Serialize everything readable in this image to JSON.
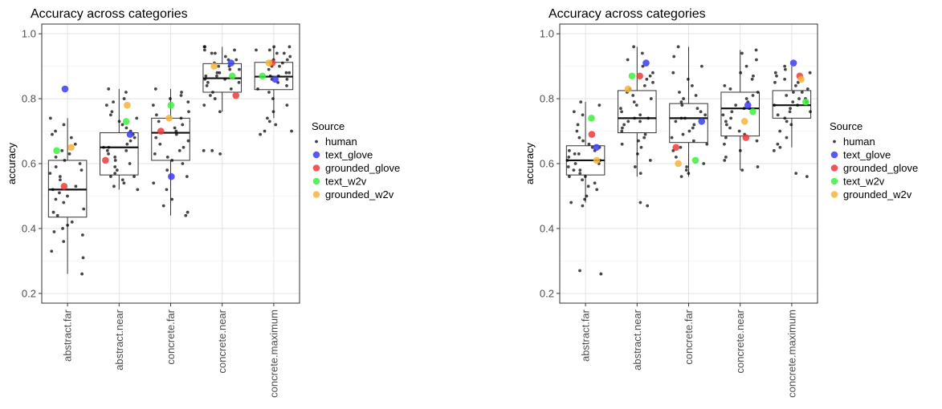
{
  "chart_data": [
    {
      "type": "box",
      "title": "Accuracy across categories",
      "ylabel": "accuracy",
      "xlabel": "",
      "ylim": [
        0.17,
        1.03
      ],
      "yticks": [
        0.2,
        0.4,
        0.6,
        0.8,
        1.0
      ],
      "ytick_labels": [
        "0.2",
        "0.4",
        "0.6",
        "0.8",
        "1.0"
      ],
      "grid": true,
      "legend_position": "right",
      "legend_title": "Source",
      "categories": [
        "abstract.far",
        "abstract.near",
        "concrete.far",
        "concrete.near",
        "concrete.maximum"
      ],
      "boxes": [
        {
          "category": "abstract.far",
          "q1": 0.435,
          "median": 0.52,
          "q3": 0.61,
          "whisker_low": 0.26,
          "whisker_high": 0.74
        },
        {
          "category": "abstract.near",
          "q1": 0.565,
          "median": 0.65,
          "q3": 0.695,
          "whisker_low": 0.52,
          "whisker_high": 0.83
        },
        {
          "category": "concrete.far",
          "q1": 0.61,
          "median": 0.695,
          "q3": 0.74,
          "whisker_low": 0.44,
          "whisker_high": 0.83
        },
        {
          "category": "concrete.near",
          "q1": 0.82,
          "median": 0.863,
          "q3": 0.908,
          "whisker_low": 0.76,
          "whisker_high": 0.96
        },
        {
          "category": "concrete.maximum",
          "q1": 0.828,
          "median": 0.868,
          "q3": 0.912,
          "whisker_low": 0.74,
          "whisker_high": 0.96
        }
      ],
      "human_points": [
        [
          0.26,
          0.31,
          0.33,
          0.36,
          0.38,
          0.39,
          0.4,
          0.41,
          0.42,
          0.44,
          0.45,
          0.46,
          0.48,
          0.49,
          0.5,
          0.51,
          0.52,
          0.53,
          0.55,
          0.56,
          0.57,
          0.58,
          0.59,
          0.6,
          0.61,
          0.62,
          0.63,
          0.64,
          0.66,
          0.68,
          0.69,
          0.7,
          0.72,
          0.74
        ],
        [
          0.52,
          0.53,
          0.54,
          0.55,
          0.56,
          0.56,
          0.57,
          0.58,
          0.59,
          0.6,
          0.61,
          0.62,
          0.63,
          0.64,
          0.64,
          0.65,
          0.65,
          0.66,
          0.67,
          0.68,
          0.69,
          0.7,
          0.71,
          0.72,
          0.73,
          0.74,
          0.75,
          0.76,
          0.78,
          0.79,
          0.8,
          0.82,
          0.83
        ],
        [
          0.44,
          0.45,
          0.47,
          0.49,
          0.52,
          0.54,
          0.56,
          0.58,
          0.6,
          0.61,
          0.62,
          0.63,
          0.64,
          0.65,
          0.66,
          0.67,
          0.68,
          0.69,
          0.7,
          0.71,
          0.72,
          0.73,
          0.74,
          0.75,
          0.76,
          0.78,
          0.79,
          0.8,
          0.81,
          0.82,
          0.83
        ],
        [
          0.63,
          0.64,
          0.64,
          0.76,
          0.78,
          0.8,
          0.81,
          0.82,
          0.83,
          0.84,
          0.85,
          0.85,
          0.86,
          0.86,
          0.87,
          0.87,
          0.88,
          0.88,
          0.89,
          0.89,
          0.9,
          0.9,
          0.91,
          0.92,
          0.92,
          0.93,
          0.94,
          0.94,
          0.95,
          0.95,
          0.96,
          0.96
        ],
        [
          0.69,
          0.7,
          0.7,
          0.72,
          0.73,
          0.74,
          0.76,
          0.78,
          0.8,
          0.82,
          0.83,
          0.84,
          0.85,
          0.86,
          0.86,
          0.87,
          0.87,
          0.88,
          0.88,
          0.89,
          0.9,
          0.9,
          0.91,
          0.92,
          0.92,
          0.93,
          0.94,
          0.94,
          0.95,
          0.95,
          0.96,
          0.96
        ]
      ],
      "series": [
        {
          "name": "human",
          "color": "#000000"
        },
        {
          "name": "text_glove",
          "color": "#3b3bf5",
          "values": [
            0.83,
            0.69,
            0.56,
            0.91,
            0.86
          ]
        },
        {
          "name": "grounded_glove",
          "color": "#f03a3a",
          "values": [
            0.53,
            0.61,
            0.7,
            0.81,
            0.91
          ]
        },
        {
          "name": "text_w2v",
          "color": "#3df03d",
          "values": [
            0.64,
            0.73,
            0.78,
            0.87,
            0.87
          ]
        },
        {
          "name": "grounded_w2v",
          "color": "#f7b43c",
          "values": [
            0.65,
            0.78,
            0.74,
            0.9,
            0.91
          ]
        }
      ]
    },
    {
      "type": "box",
      "title": "Accuracy across categories",
      "ylabel": "accuracy",
      "xlabel": "",
      "ylim": [
        0.17,
        1.03
      ],
      "yticks": [
        0.2,
        0.4,
        0.6,
        0.8,
        1.0
      ],
      "ytick_labels": [
        "0.2",
        "0.4",
        "0.6",
        "0.8",
        "1.0"
      ],
      "grid": true,
      "legend_position": "right",
      "legend_title": "Source",
      "categories": [
        "abstract.far",
        "abstract.near",
        "concrete.far",
        "concrete.near",
        "concrete.maximum"
      ],
      "boxes": [
        {
          "category": "abstract.far",
          "q1": 0.565,
          "median": 0.61,
          "q3": 0.655,
          "whisker_low": 0.48,
          "whisker_high": 0.79
        },
        {
          "category": "abstract.near",
          "q1": 0.695,
          "median": 0.74,
          "q3": 0.825,
          "whisker_low": 0.56,
          "whisker_high": 0.96
        },
        {
          "category": "concrete.far",
          "q1": 0.665,
          "median": 0.74,
          "q3": 0.785,
          "whisker_low": 0.56,
          "whisker_high": 0.96
        },
        {
          "category": "concrete.near",
          "q1": 0.685,
          "median": 0.77,
          "q3": 0.82,
          "whisker_low": 0.58,
          "whisker_high": 0.95
        },
        {
          "category": "concrete.maximum",
          "q1": 0.74,
          "median": 0.78,
          "q3": 0.825,
          "whisker_low": 0.65,
          "whisker_high": 0.9
        }
      ],
      "human_points": [
        [
          0.26,
          0.27,
          0.47,
          0.48,
          0.49,
          0.5,
          0.52,
          0.53,
          0.54,
          0.55,
          0.56,
          0.56,
          0.57,
          0.58,
          0.58,
          0.59,
          0.6,
          0.6,
          0.61,
          0.61,
          0.62,
          0.63,
          0.63,
          0.64,
          0.64,
          0.65,
          0.65,
          0.66,
          0.67,
          0.68,
          0.7,
          0.72,
          0.75,
          0.76,
          0.78,
          0.79
        ],
        [
          0.47,
          0.48,
          0.57,
          0.59,
          0.61,
          0.63,
          0.65,
          0.66,
          0.67,
          0.68,
          0.69,
          0.7,
          0.71,
          0.72,
          0.73,
          0.73,
          0.74,
          0.74,
          0.75,
          0.76,
          0.77,
          0.78,
          0.79,
          0.8,
          0.81,
          0.82,
          0.83,
          0.84,
          0.85,
          0.86,
          0.87,
          0.88,
          0.9,
          0.92,
          0.94,
          0.96
        ],
        [
          0.56,
          0.57,
          0.58,
          0.59,
          0.6,
          0.62,
          0.64,
          0.65,
          0.66,
          0.67,
          0.68,
          0.69,
          0.7,
          0.71,
          0.72,
          0.73,
          0.74,
          0.74,
          0.75,
          0.76,
          0.77,
          0.78,
          0.79,
          0.8,
          0.81,
          0.82,
          0.84,
          0.86,
          0.88,
          0.9,
          0.93,
          0.96
        ],
        [
          0.58,
          0.59,
          0.61,
          0.62,
          0.64,
          0.66,
          0.67,
          0.68,
          0.69,
          0.7,
          0.71,
          0.72,
          0.73,
          0.74,
          0.75,
          0.76,
          0.77,
          0.77,
          0.78,
          0.79,
          0.8,
          0.81,
          0.82,
          0.83,
          0.84,
          0.86,
          0.87,
          0.88,
          0.9,
          0.92,
          0.94,
          0.95
        ],
        [
          0.56,
          0.57,
          0.64,
          0.65,
          0.66,
          0.68,
          0.7,
          0.72,
          0.73,
          0.74,
          0.75,
          0.76,
          0.76,
          0.77,
          0.78,
          0.78,
          0.79,
          0.79,
          0.8,
          0.8,
          0.81,
          0.82,
          0.82,
          0.83,
          0.84,
          0.85,
          0.85,
          0.86,
          0.87,
          0.88,
          0.88,
          0.89,
          0.9
        ]
      ],
      "series": [
        {
          "name": "human",
          "color": "#000000"
        },
        {
          "name": "text_glove",
          "color": "#3b3bf5",
          "values": [
            0.65,
            0.91,
            0.73,
            0.78,
            0.91
          ]
        },
        {
          "name": "grounded_glove",
          "color": "#f03a3a",
          "values": [
            0.69,
            0.87,
            0.65,
            0.68,
            0.87
          ]
        },
        {
          "name": "text_w2v",
          "color": "#3df03d",
          "values": [
            0.74,
            0.87,
            0.61,
            0.76,
            0.79
          ]
        },
        {
          "name": "grounded_w2v",
          "color": "#f7b43c",
          "values": [
            0.61,
            0.83,
            0.6,
            0.73,
            0.86
          ]
        }
      ]
    }
  ]
}
